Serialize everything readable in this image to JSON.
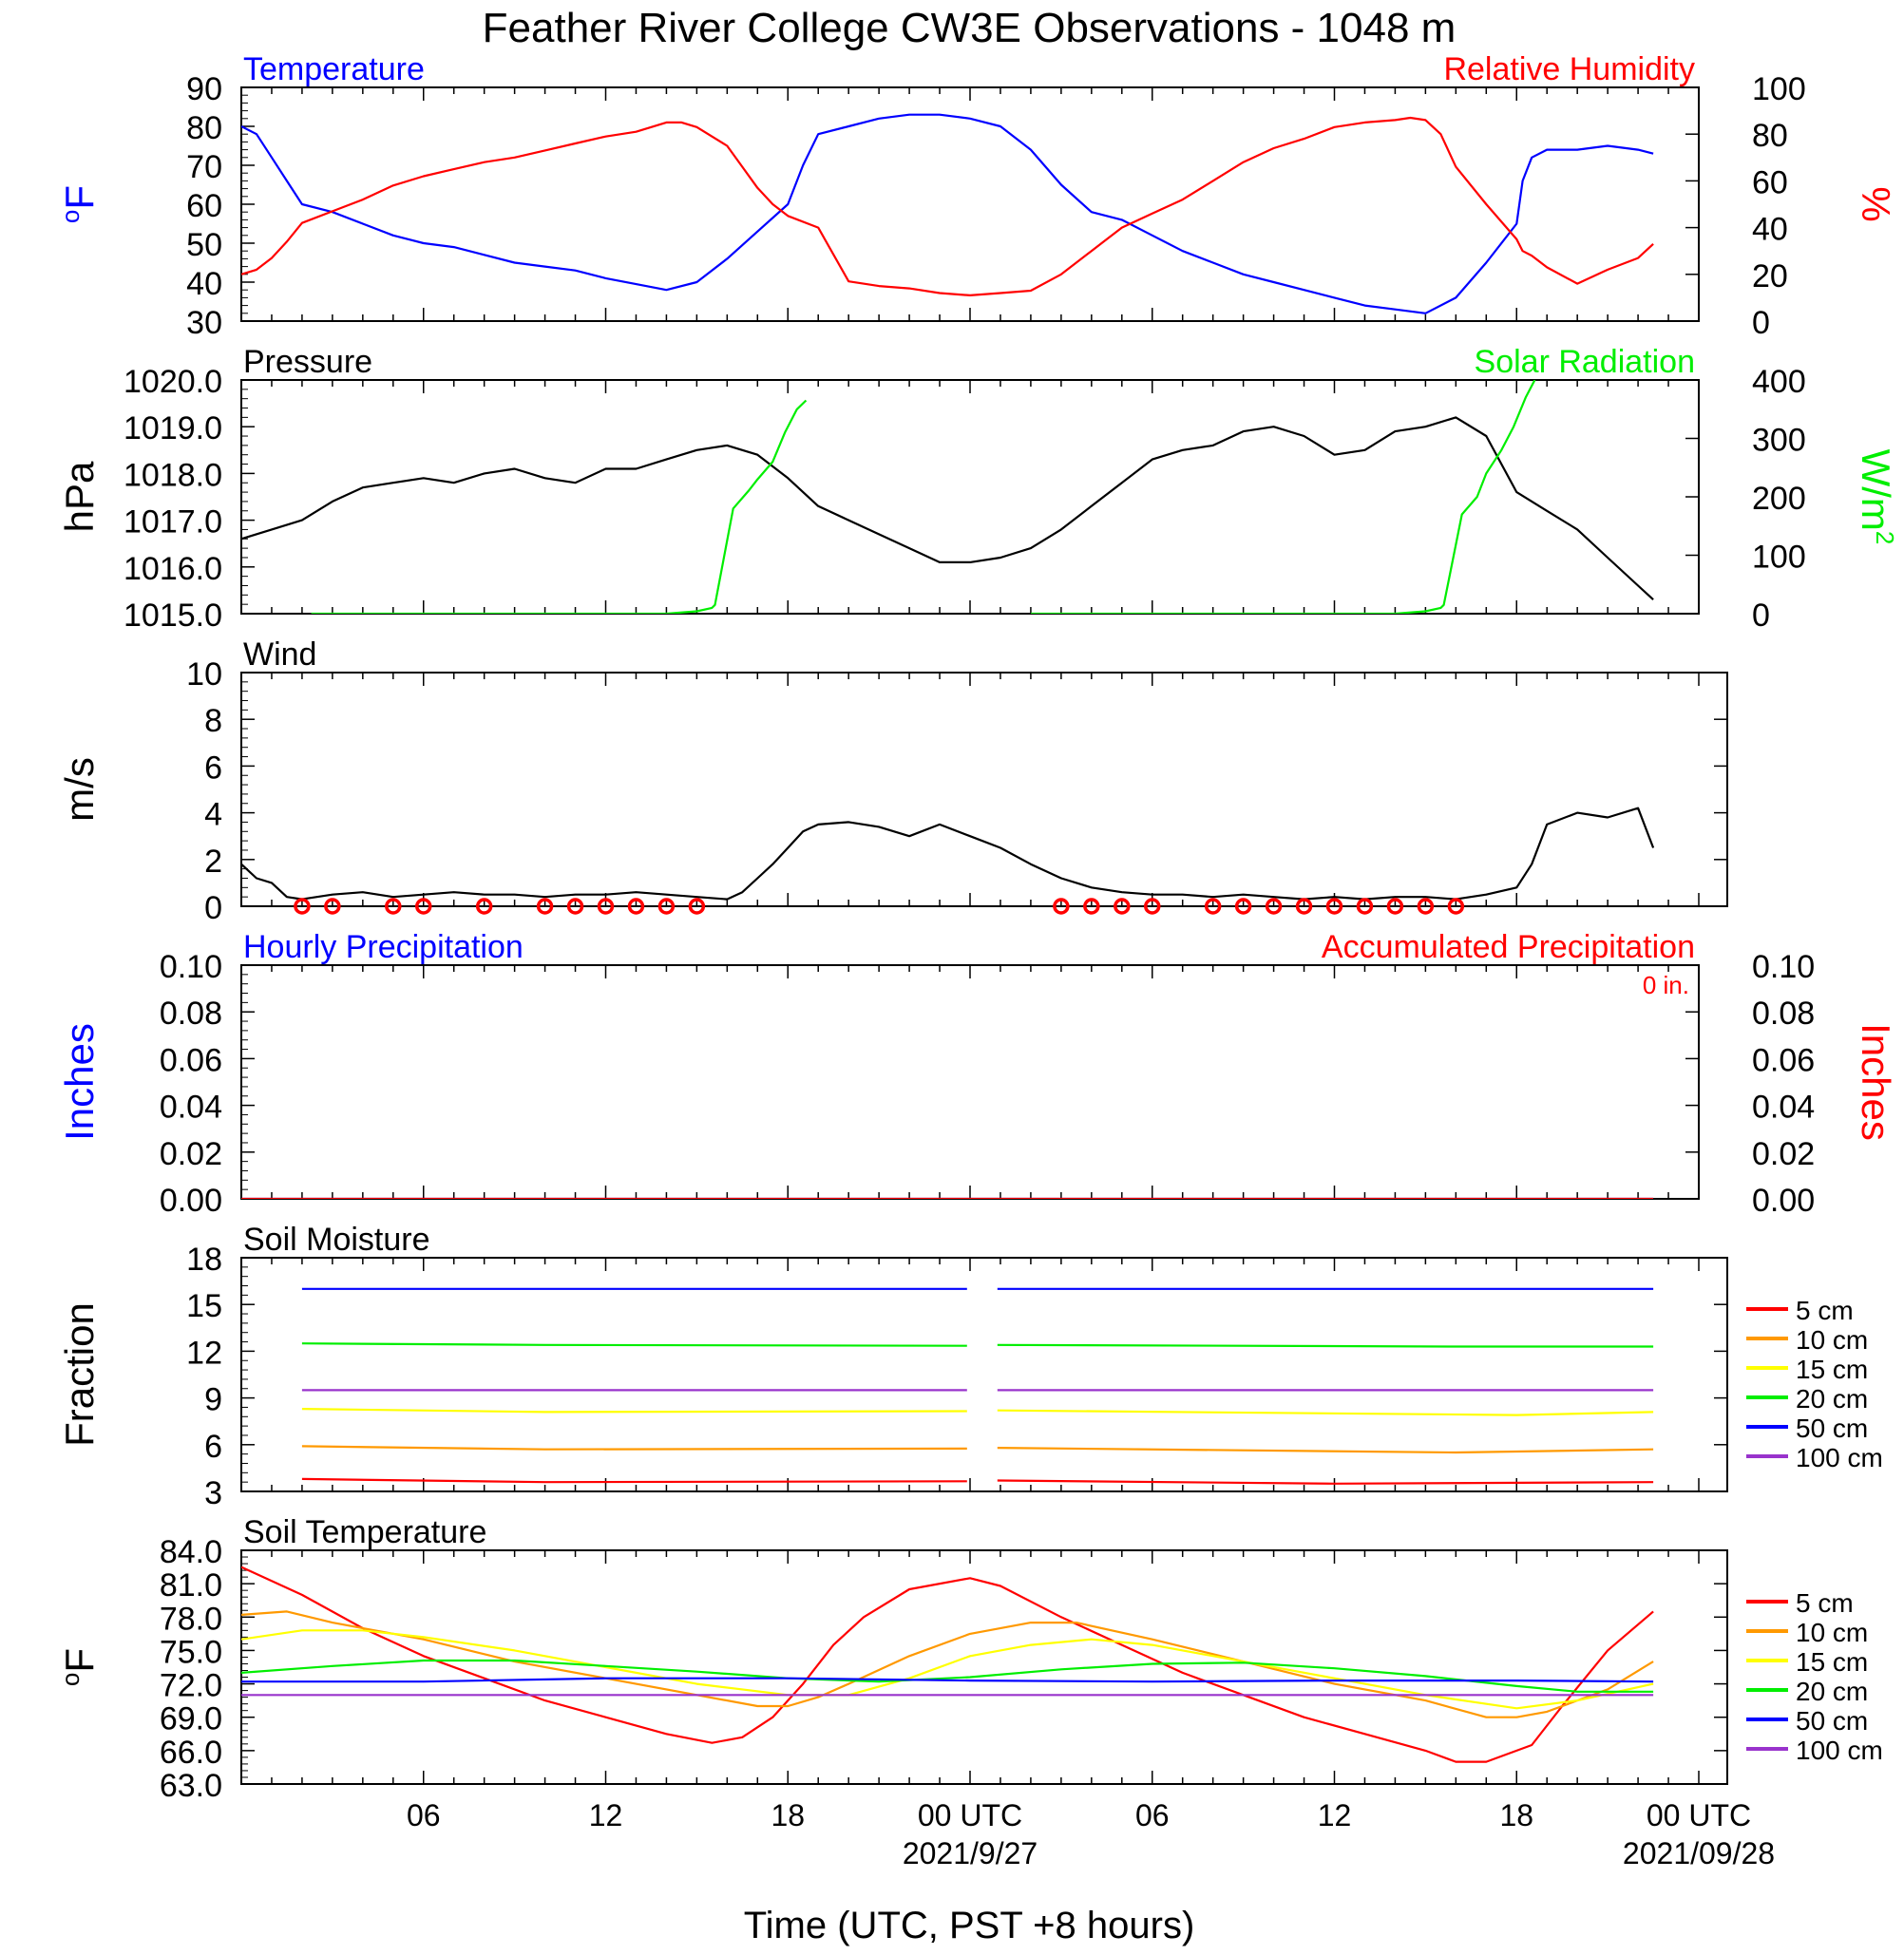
{
  "page_title": "Feather River College CW3E Observations - 1048 m",
  "x_axis": {
    "label": "Time (UTC, PST +8 hours)",
    "ticks": [
      {
        "t": 6,
        "label": "06"
      },
      {
        "t": 12,
        "label": "12"
      },
      {
        "t": 18,
        "label": "18"
      },
      {
        "t": 24,
        "label": "00 UTC"
      },
      {
        "t": 30,
        "label": "06"
      },
      {
        "t": 36,
        "label": "12"
      },
      {
        "t": 42,
        "label": "18"
      },
      {
        "t": 48,
        "label": "00 UTC"
      }
    ],
    "date_labels": [
      {
        "t": 24,
        "label": "2021/9/27"
      },
      {
        "t": 48,
        "label": "2021/09/28"
      }
    ]
  },
  "legend_soil": {
    "entries": [
      {
        "label": "5 cm",
        "color": "#ff0000"
      },
      {
        "label": "10 cm",
        "color": "#ff9900"
      },
      {
        "label": "15 cm",
        "color": "#ffff00"
      },
      {
        "label": "20 cm",
        "color": "#00ee00"
      },
      {
        "label": "50 cm",
        "color": "#0000ff"
      },
      {
        "label": "100 cm",
        "color": "#9933cc"
      }
    ]
  },
  "chart_data": [
    {
      "type": "line",
      "panel": "temp_rh",
      "title_left": "Temperature",
      "title_right": "Relative Humidity",
      "ylabel_left": "oF",
      "ylabel_right": "%",
      "ylim_left": [
        30,
        90
      ],
      "yticks_left": [
        "30",
        "40",
        "50",
        "60",
        "70",
        "80",
        "90"
      ],
      "ylim_right": [
        0,
        100
      ],
      "yticks_right": [
        "0",
        "20",
        "40",
        "60",
        "80",
        "100"
      ],
      "series": [
        {
          "name": "Temperature",
          "color": "#0000ff",
          "axis": "left",
          "x": [
            0,
            0.5,
            1,
            1.5,
            2,
            3,
            4,
            5,
            6,
            7,
            8,
            9,
            10,
            11,
            12,
            13,
            14,
            15,
            16,
            17,
            18,
            18.5,
            19,
            20,
            21,
            22,
            23,
            24,
            25,
            26,
            27,
            28,
            29,
            30,
            31,
            32,
            33,
            34,
            35,
            36,
            37,
            38,
            39,
            40,
            41,
            42,
            42.2,
            42.5,
            43,
            44,
            45,
            46,
            46.5
          ],
          "y": [
            80,
            78,
            72,
            66,
            60,
            58,
            55,
            52,
            50,
            49,
            47,
            45,
            44,
            43,
            41,
            39.5,
            38,
            40,
            46,
            53,
            60,
            70,
            78,
            80,
            82,
            83,
            83,
            82,
            80,
            74,
            65,
            58,
            56,
            52,
            48,
            45,
            42,
            40,
            38,
            36,
            34,
            33,
            32,
            36,
            45,
            55,
            66,
            72,
            74,
            74,
            75,
            74,
            73
          ]
        },
        {
          "name": "Relative Humidity",
          "color": "#ff0000",
          "axis": "right",
          "x": [
            0,
            0.5,
            1,
            1.5,
            2,
            3,
            4,
            5,
            6,
            7,
            8,
            9,
            10,
            11,
            12,
            13,
            14,
            14.5,
            15,
            16,
            16.5,
            17,
            17.5,
            18,
            19,
            20,
            21,
            22,
            23,
            24,
            25,
            26,
            27,
            28,
            29,
            30,
            31,
            32,
            33,
            34,
            35,
            36,
            37,
            38,
            38.5,
            39,
            39.5,
            40,
            41,
            42,
            42.2,
            42.5,
            43,
            44,
            45,
            46,
            46.5
          ],
          "y": [
            20,
            22,
            27,
            34,
            42,
            47,
            52,
            58,
            62,
            65,
            68,
            70,
            73,
            76,
            79,
            81,
            85,
            85,
            83,
            75,
            66,
            57,
            50,
            45,
            40,
            17,
            15,
            14,
            12,
            11,
            12,
            13,
            20,
            30,
            40,
            46,
            52,
            60,
            68,
            74,
            78,
            83,
            85,
            86,
            87,
            86,
            80,
            66,
            50,
            35,
            30,
            28,
            23,
            16,
            22,
            27,
            33
          ]
        }
      ]
    },
    {
      "type": "line",
      "panel": "pressure_solar",
      "title_left": "Pressure",
      "title_right": "Solar Radiation",
      "ylabel_left": "hPa",
      "ylabel_right": "W/m2",
      "ylim_left": [
        1015.0,
        1020.0
      ],
      "yticks_left": [
        "1015.0",
        "1016.0",
        "1017.0",
        "1018.0",
        "1019.0",
        "1020.0"
      ],
      "ylim_right": [
        0,
        400
      ],
      "yticks_right": [
        "0",
        "100",
        "200",
        "300",
        "400"
      ],
      "series": [
        {
          "name": "Pressure",
          "color": "#000000",
          "axis": "left",
          "x": [
            0,
            1,
            2,
            3,
            4,
            5,
            6,
            7,
            8,
            9,
            10,
            11,
            12,
            13,
            14,
            15,
            16,
            17,
            18,
            19,
            20,
            21,
            22,
            23,
            24,
            25,
            26,
            27,
            28,
            29,
            30,
            31,
            32,
            33,
            34,
            35,
            36,
            37,
            38,
            39,
            40,
            41,
            42,
            43,
            44,
            45,
            46,
            46.5
          ],
          "y": [
            1016.6,
            1016.8,
            1017.0,
            1017.4,
            1017.7,
            1017.8,
            1017.9,
            1017.8,
            1018.0,
            1018.1,
            1017.9,
            1017.8,
            1018.1,
            1018.1,
            1018.3,
            1018.5,
            1018.6,
            1018.4,
            1017.9,
            1017.3,
            1017.0,
            1016.7,
            1016.4,
            1016.1,
            1016.1,
            1016.2,
            1016.4,
            1016.8,
            1017.3,
            1017.8,
            1018.3,
            1018.5,
            1018.6,
            1018.9,
            1019.0,
            1018.8,
            1018.4,
            1018.5,
            1018.9,
            1019.0,
            1019.2,
            1018.8,
            1017.6,
            1017.2,
            1016.8,
            1016.2,
            1015.6,
            1015.3
          ]
        },
        {
          "name": "Solar Radiation",
          "color": "#00ee00",
          "axis": "right",
          "x": [
            2.3,
            14,
            15,
            15.5,
            15.6,
            16.2,
            16.7,
            17,
            17.5,
            17.9,
            18.3,
            18.6
          ],
          "y": [
            0,
            0,
            4,
            10,
            15,
            180,
            210,
            230,
            260,
            310,
            350,
            365
          ]
        },
        {
          "name": "Solar Radiation",
          "color": "#00ee00",
          "axis": "right",
          "x": [
            26,
            38,
            39,
            39.5,
            39.6,
            40.2,
            40.7,
            41,
            41.5,
            41.9,
            42.3,
            42.6
          ],
          "y": [
            0,
            0,
            4,
            10,
            15,
            170,
            200,
            240,
            280,
            320,
            370,
            400
          ]
        }
      ]
    },
    {
      "type": "line",
      "panel": "wind",
      "title_left": "Wind",
      "ylabel_left": "m/s",
      "ylim_left": [
        0,
        10
      ],
      "yticks_left": [
        "0",
        "2",
        "4",
        "6",
        "8",
        "10"
      ],
      "series": [
        {
          "name": "Wind",
          "color": "#000000",
          "axis": "left",
          "x": [
            0,
            0.5,
            1,
            1.5,
            2,
            3,
            4,
            5,
            6,
            7,
            8,
            9,
            10,
            11,
            12,
            13,
            14,
            15,
            16,
            16.5,
            17,
            17.5,
            18,
            18.5,
            19,
            20,
            21,
            22,
            23,
            24,
            25,
            26,
            27,
            28,
            29,
            30,
            31,
            32,
            33,
            34,
            35,
            36,
            37,
            38,
            39,
            40,
            41,
            42,
            42.5,
            43,
            44,
            45,
            46,
            46.5
          ],
          "y": [
            1.8,
            1.2,
            1.0,
            0.4,
            0.3,
            0.5,
            0.6,
            0.4,
            0.5,
            0.6,
            0.5,
            0.5,
            0.4,
            0.5,
            0.5,
            0.6,
            0.5,
            0.4,
            0.3,
            0.6,
            1.2,
            1.8,
            2.5,
            3.2,
            3.5,
            3.6,
            3.4,
            3.0,
            3.5,
            3.0,
            2.5,
            1.8,
            1.2,
            0.8,
            0.6,
            0.5,
            0.5,
            0.4,
            0.5,
            0.4,
            0.3,
            0.4,
            0.3,
            0.4,
            0.4,
            0.3,
            0.5,
            0.8,
            1.8,
            3.5,
            4.0,
            3.8,
            4.2,
            2.5
          ]
        }
      ],
      "calm_marker_hours": [
        2,
        3,
        5,
        6,
        8,
        10,
        11,
        12,
        13,
        14,
        15,
        27,
        28,
        29,
        30,
        32,
        33,
        34,
        35,
        36,
        37,
        38,
        39,
        40
      ],
      "barb_color": "#ff0000"
    },
    {
      "type": "line",
      "panel": "precipitation",
      "title_left": "Hourly Precipitation",
      "title_right": "Accumulated Precipitation",
      "annotation": "0 in.",
      "ylabel_left": "Inches",
      "ylabel_right": "Inches",
      "ylim_left": [
        0,
        0.1
      ],
      "yticks_left": [
        "0.00",
        "0.02",
        "0.04",
        "0.06",
        "0.08",
        "0.10"
      ],
      "ylim_right": [
        0,
        0.1
      ],
      "yticks_right": [
        "0.00",
        "0.02",
        "0.04",
        "0.06",
        "0.08",
        "0.10"
      ],
      "series": [
        {
          "name": "Hourly Precipitation",
          "color": "#0000ff",
          "axis": "left",
          "x": [
            0,
            46.5
          ],
          "y": [
            0,
            0
          ]
        },
        {
          "name": "Accumulated Precipitation",
          "color": "#ff0000",
          "axis": "left",
          "x": [
            0,
            46.5
          ],
          "y": [
            0,
            0
          ]
        }
      ]
    },
    {
      "type": "line",
      "panel": "soil_moisture",
      "title_left": "Soil Moisture",
      "ylabel_left": "Fraction",
      "ylim_left": [
        3,
        18
      ],
      "yticks_left": [
        "3",
        "6",
        "9",
        "12",
        "15",
        "18"
      ],
      "series": [
        {
          "name": "5 cm",
          "color": "#ff0000",
          "x": [
            2,
            10,
            23.9,
            24.9,
            36,
            46.5
          ],
          "y": [
            3.8,
            3.6,
            3.65,
            3.7,
            3.5,
            3.6
          ]
        },
        {
          "name": "10 cm",
          "color": "#ff9900",
          "x": [
            2,
            10,
            23.9,
            24.9,
            40,
            46.5
          ],
          "y": [
            5.9,
            5.7,
            5.75,
            5.8,
            5.5,
            5.7
          ]
        },
        {
          "name": "15 cm",
          "color": "#ffff00",
          "x": [
            2,
            10,
            23.9,
            24.9,
            42,
            46.5
          ],
          "y": [
            8.3,
            8.1,
            8.15,
            8.2,
            7.9,
            8.1
          ]
        },
        {
          "name": "20 cm",
          "color": "#00ee00",
          "x": [
            2,
            10,
            23.9,
            24.9,
            40,
            46.5
          ],
          "y": [
            12.5,
            12.4,
            12.35,
            12.4,
            12.3,
            12.3
          ]
        },
        {
          "name": "50 cm",
          "color": "#0000ff",
          "x": [
            2,
            23.9,
            24.9,
            46.5
          ],
          "y": [
            16.0,
            16.0,
            16.0,
            16.0
          ]
        },
        {
          "name": "100 cm",
          "color": "#9933cc",
          "x": [
            2,
            23.9,
            24.9,
            46.5
          ],
          "y": [
            9.5,
            9.5,
            9.5,
            9.5
          ]
        }
      ]
    },
    {
      "type": "line",
      "panel": "soil_temperature",
      "title_left": "Soil Temperature",
      "ylabel_left": "oF",
      "ylim_left": [
        63,
        84
      ],
      "yticks_left": [
        "63.0",
        "66.0",
        "69.0",
        "72.0",
        "75.0",
        "78.0",
        "81.0",
        "84.0"
      ],
      "series": [
        {
          "name": "5 cm",
          "color": "#ff0000",
          "x": [
            0,
            2,
            4,
            6,
            8,
            10,
            12,
            14,
            15.5,
            16.5,
            17.5,
            18.5,
            19.5,
            20.5,
            22,
            24,
            25,
            27,
            29,
            31,
            33,
            35,
            37,
            39,
            40,
            41,
            42.5,
            43.5,
            45,
            46.5
          ],
          "y": [
            82.5,
            80,
            77,
            74.5,
            72.5,
            70.5,
            69,
            67.5,
            66.7,
            67.2,
            69,
            72,
            75.5,
            78,
            80.5,
            81.5,
            80.8,
            78,
            75.5,
            73,
            71,
            69,
            67.5,
            66,
            65,
            65,
            66.5,
            70,
            75,
            78.5
          ]
        },
        {
          "name": "10 cm",
          "color": "#ff9900",
          "x": [
            0,
            1.5,
            3,
            6,
            9,
            12,
            15,
            17,
            18,
            19,
            20,
            22,
            24,
            26,
            27.5,
            30,
            33,
            36,
            39,
            41,
            42,
            43,
            45,
            46.5
          ],
          "y": [
            78.2,
            78.5,
            77.5,
            76,
            74,
            72.5,
            71,
            70,
            70,
            70.8,
            72,
            74.5,
            76.5,
            77.5,
            77.5,
            76,
            74,
            72,
            70.5,
            69,
            69,
            69.5,
            71.5,
            74
          ]
        },
        {
          "name": "15 cm",
          "color": "#ffff00",
          "x": [
            0,
            2,
            4,
            6,
            9,
            12,
            15,
            18,
            20,
            22,
            24,
            26,
            28,
            30,
            33,
            36,
            39,
            42,
            44,
            46.5
          ],
          "y": [
            76,
            76.8,
            76.8,
            76.2,
            75,
            73.5,
            72,
            71,
            71,
            72.5,
            74.5,
            75.5,
            76,
            75.5,
            74,
            72.5,
            71,
            69.8,
            70.5,
            72
          ]
        },
        {
          "name": "20 cm",
          "color": "#00ee00",
          "x": [
            0,
            3,
            6,
            9,
            12,
            15,
            18,
            21,
            24,
            27,
            30,
            33,
            36,
            39,
            42,
            44,
            46.5
          ],
          "y": [
            73,
            73.6,
            74.1,
            74.1,
            73.6,
            73.1,
            72.5,
            72.2,
            72.6,
            73.3,
            73.8,
            73.9,
            73.4,
            72.7,
            71.8,
            71.3,
            71.3
          ]
        },
        {
          "name": "50 cm",
          "color": "#0000ff",
          "x": [
            0,
            6,
            12,
            18,
            24,
            30,
            36,
            42,
            46.5
          ],
          "y": [
            72.2,
            72.2,
            72.5,
            72.5,
            72.3,
            72.2,
            72.3,
            72.3,
            72.2
          ]
        },
        {
          "name": "100 cm",
          "color": "#9933cc",
          "x": [
            0,
            12,
            24,
            36,
            46.5
          ],
          "y": [
            71.0,
            71.0,
            71.0,
            71.0,
            71.0
          ]
        }
      ]
    }
  ]
}
